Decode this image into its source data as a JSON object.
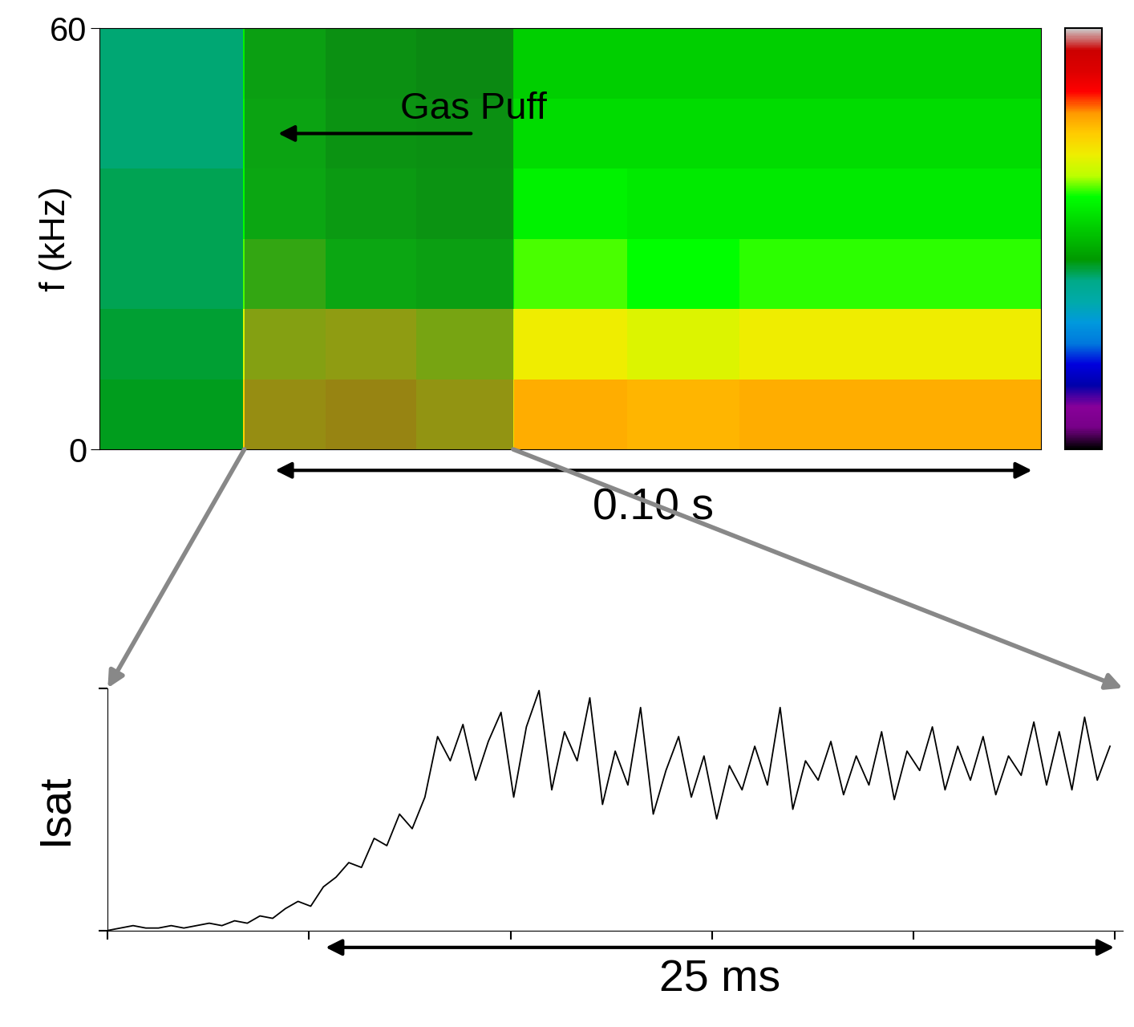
{
  "chart_data": [
    {
      "type": "heatmap",
      "ylabel": "f (kHz)",
      "xlim": [
        0,
        0.125
      ],
      "ylim": [
        0,
        60
      ],
      "yticks": [
        0,
        60
      ],
      "tick_labels": "y",
      "time_edges": [
        0,
        0.019,
        0.03,
        0.042,
        0.055,
        0.07,
        0.085,
        0.1,
        0.125
      ],
      "freq_edges": [
        0,
        10,
        20,
        30,
        40,
        50,
        60
      ],
      "cells": [
        [
          0.44,
          0.74,
          0.76,
          0.72,
          0.78,
          0.77,
          0.78,
          0.78
        ],
        [
          0.43,
          0.68,
          0.7,
          0.66,
          0.7,
          0.68,
          0.7,
          0.7
        ],
        [
          0.42,
          0.62,
          0.6,
          0.58,
          0.62,
          0.6,
          0.61,
          0.61
        ],
        [
          0.42,
          0.6,
          0.57,
          0.55,
          0.58,
          0.57,
          0.57,
          0.57
        ],
        [
          0.41,
          0.59,
          0.55,
          0.54,
          0.55,
          0.55,
          0.55,
          0.55
        ],
        [
          0.41,
          0.58,
          0.54,
          0.52,
          0.53,
          0.53,
          0.53,
          0.53
        ]
      ],
      "colorbar_range": [
        0,
        1
      ],
      "shaded": [
        0.0192,
        0.0549
      ],
      "annotations": [
        {
          "text": "Gas Puff",
          "from": 0.0496,
          "to": 0.0234,
          "y": 45
        }
      ],
      "span_label": {
        "text": "0.10 s",
        "start": 0.023,
        "end": 0.1241
      }
    },
    {
      "type": "line",
      "ylabel": "Isat",
      "color": "#000000",
      "tick_labels": false,
      "xlim": [
        0,
        32
      ],
      "ylim": [
        0,
        1
      ],
      "xticks": [
        0,
        6.35,
        12.7,
        19.05,
        25.4,
        31.75
      ],
      "yticks": [
        0,
        1
      ],
      "x": [
        0.0,
        0.4,
        0.8,
        1.2,
        1.6,
        2.0,
        2.4,
        2.8,
        3.2,
        3.6,
        4.0,
        4.4,
        4.8,
        5.2,
        5.6,
        6.0,
        6.4,
        6.8,
        7.2,
        7.6,
        8.0,
        8.4,
        8.8,
        9.2,
        9.6,
        10.0,
        10.4,
        10.8,
        11.2,
        11.6,
        12.0,
        12.4,
        12.8,
        13.2,
        13.6,
        14.0,
        14.4,
        14.8,
        15.2,
        15.6,
        16.0,
        16.4,
        16.8,
        17.2,
        17.6,
        18.0,
        18.4,
        18.8,
        19.2,
        19.6,
        20.0,
        20.4,
        20.8,
        21.2,
        21.6,
        22.0,
        22.4,
        22.8,
        23.2,
        23.6,
        24.0,
        24.4,
        24.8,
        25.2,
        25.6,
        26.0,
        26.4,
        26.8,
        27.2,
        27.6,
        28.0,
        28.4,
        28.8,
        29.2,
        29.6,
        30.0,
        30.4,
        30.8,
        31.2,
        31.6
      ],
      "values": [
        0.0,
        0.01,
        0.02,
        0.01,
        0.01,
        0.02,
        0.01,
        0.02,
        0.03,
        0.02,
        0.04,
        0.03,
        0.06,
        0.05,
        0.09,
        0.12,
        0.1,
        0.18,
        0.22,
        0.28,
        0.26,
        0.38,
        0.35,
        0.48,
        0.42,
        0.55,
        0.8,
        0.7,
        0.85,
        0.62,
        0.78,
        0.9,
        0.55,
        0.84,
        0.99,
        0.58,
        0.82,
        0.7,
        0.96,
        0.52,
        0.74,
        0.6,
        0.92,
        0.48,
        0.66,
        0.8,
        0.55,
        0.72,
        0.46,
        0.68,
        0.58,
        0.76,
        0.6,
        0.92,
        0.5,
        0.7,
        0.62,
        0.78,
        0.56,
        0.72,
        0.6,
        0.82,
        0.54,
        0.74,
        0.66,
        0.84,
        0.58,
        0.76,
        0.62,
        0.8,
        0.56,
        0.72,
        0.64,
        0.86,
        0.6,
        0.82,
        0.58,
        0.88,
        0.62,
        0.76
      ],
      "span_label": {
        "text": "25 ms",
        "start": 6.8,
        "end": 31.8
      }
    }
  ]
}
